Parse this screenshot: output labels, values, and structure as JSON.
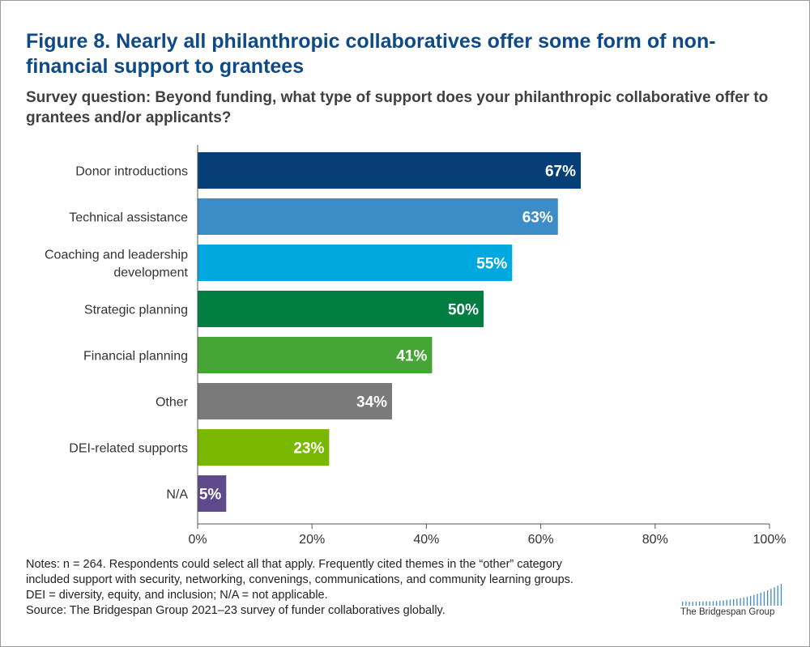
{
  "title": "Figure 8. Nearly all philanthropic collaboratives offer some form of non-financial support to grantees",
  "subtitle": "Survey question: Beyond funding, what type of support does your philanthropic collaborative offer to grantees and/or applicants?",
  "chart_data": {
    "type": "bar",
    "orientation": "horizontal",
    "categories": [
      "Donor introductions",
      "Technical assistance",
      "Coaching and leadership development",
      "Strategic planning",
      "Financial planning",
      "Other",
      "DEI-related supports",
      "N/A"
    ],
    "category_lines": [
      [
        "Donor introductions"
      ],
      [
        "Technical assistance"
      ],
      [
        "Coaching and leadership",
        "development"
      ],
      [
        "Strategic planning"
      ],
      [
        "Financial planning"
      ],
      [
        "Other"
      ],
      [
        "DEI-related supports"
      ],
      [
        "N/A"
      ]
    ],
    "values": [
      67,
      63,
      55,
      50,
      41,
      34,
      23,
      5
    ],
    "data_labels": [
      "67%",
      "63%",
      "55%",
      "50%",
      "41%",
      "34%",
      "23%",
      "5%"
    ],
    "colors": [
      "#063f78",
      "#3c8cc8",
      "#00a8e0",
      "#007d40",
      "#45a535",
      "#7a7a7a",
      "#7ab800",
      "#5e4a8a"
    ],
    "xlim": [
      0,
      100
    ],
    "xticks": [
      0,
      20,
      40,
      60,
      80,
      100
    ],
    "xtick_labels": [
      "0%",
      "20%",
      "40%",
      "60%",
      "80%",
      "100%"
    ],
    "grid": false
  },
  "notes": [
    "Notes: n = 264. Respondents could select all that apply. Frequently cited themes in the “other” category",
    "included support with security, networking, convenings, communications, and community learning groups.",
    "DEI = diversity, equity, and inclusion; N/A = not applicable.",
    "Source: The Bridgespan Group 2021–23 survey of funder collaboratives globally."
  ],
  "logo": {
    "text": "The Bridgespan Group",
    "color": "#3c8cc8"
  }
}
